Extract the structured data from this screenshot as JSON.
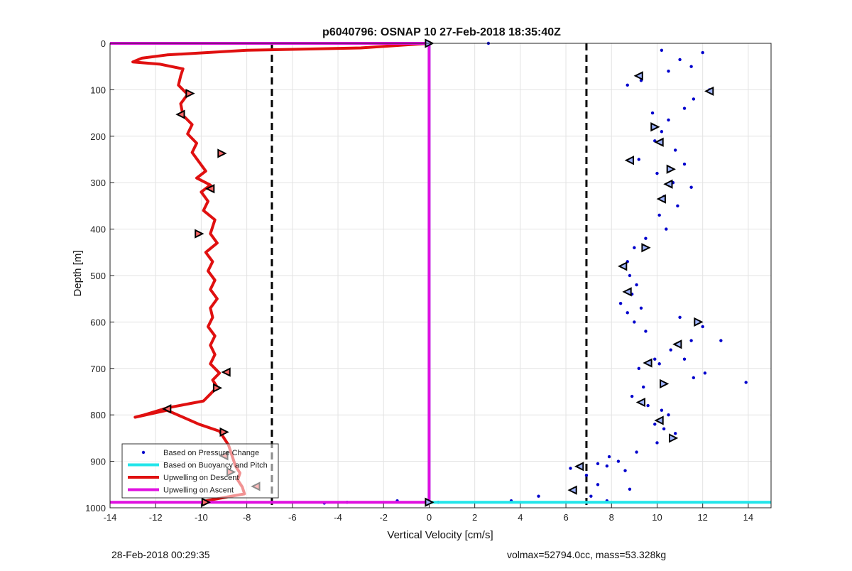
{
  "chart_data": {
    "type": "scatter",
    "title": "p6040796: OSNAP 10 27-Feb-2018 18:35:40Z",
    "xlabel": "Vertical Velocity [cm/s]",
    "ylabel": "Depth [m]",
    "xlim": [
      -14,
      15
    ],
    "ylim": [
      0,
      1000
    ],
    "y_reversed": true,
    "grid": true,
    "x_ticks": [
      -14,
      -12,
      -10,
      -8,
      -6,
      -4,
      -2,
      0,
      2,
      4,
      6,
      8,
      10,
      12,
      14
    ],
    "y_ticks": [
      0,
      100,
      200,
      300,
      400,
      500,
      600,
      700,
      800,
      900,
      1000
    ],
    "legend": {
      "placement": "bottom-left",
      "entries": [
        {
          "label": "Based on Pressure Change",
          "color": "#0000cc",
          "style": "dot"
        },
        {
          "label": "Based on Buoyancy and Pitch",
          "color": "#22e5ea",
          "style": "line"
        },
        {
          "label": "Upwelling on Descent",
          "color": "#e01010",
          "style": "line"
        },
        {
          "label": "Upwelling on Ascent",
          "color": "#e010e0",
          "style": "line"
        }
      ]
    },
    "reference_lines": {
      "color": "#000000",
      "style": "dashed",
      "x": [
        -6.9,
        6.9
      ]
    },
    "series": [
      {
        "name": "Upwelling on Descent",
        "color": "#e01010",
        "x": [
          0,
          -3,
          -8,
          -11.5,
          -12.6,
          -13,
          -11.8,
          -10.8,
          -10.9,
          -11.0,
          -10.6,
          -10.9,
          -10.8,
          -10.4,
          -10.6,
          -10.2,
          -10.4,
          -10.1,
          -9.8,
          -10.2,
          -9.6,
          -10.0,
          -9.7,
          -9.9,
          -9.4,
          -9.5,
          -9.6,
          -9.3,
          -9.8,
          -9.5,
          -9.7,
          -9.4,
          -9.6,
          -9.3,
          -9.6,
          -9.5,
          -9.7,
          -9.4,
          -9.6,
          -9.4,
          -9.6,
          -9.2,
          -9.5,
          -9.3,
          -9.6,
          -9.9,
          -11.5,
          -12.5,
          -12.9,
          -11.5,
          -10.1,
          -9.2,
          -9.0,
          -8.8,
          -8.7,
          -8.6,
          -8.5,
          -8.3,
          -8.4,
          -8.2,
          -8.1,
          -9.8
        ],
        "y": [
          0,
          10,
          15,
          25,
          32,
          40,
          45,
          55,
          70,
          90,
          110,
          130,
          155,
          175,
          195,
          215,
          235,
          255,
          275,
          290,
          305,
          320,
          340,
          360,
          380,
          395,
          410,
          430,
          450,
          470,
          490,
          510,
          530,
          550,
          570,
          590,
          610,
          630,
          650,
          670,
          690,
          710,
          725,
          740,
          755,
          770,
          785,
          800,
          805,
          790,
          820,
          835,
          850,
          865,
          880,
          895,
          910,
          925,
          940,
          955,
          970,
          985
        ]
      },
      {
        "name": "Based on Pressure Change",
        "color": "#0000cc",
        "x": [
          10.2,
          11.0,
          12.0,
          11.5,
          10.5,
          9.3,
          8.7,
          12.3,
          11.6,
          9.8,
          10.5,
          11.2,
          10.2,
          9.9,
          10.8,
          11.2,
          10.0,
          9.2,
          10.7,
          11.5,
          10.3,
          10.9,
          10.1,
          10.4,
          9.5,
          9.0,
          8.7,
          8.6,
          8.8,
          9.1,
          8.9,
          8.4,
          8.7,
          9.3,
          9.0,
          9.5,
          11.0,
          12.0,
          11.5,
          12.8,
          10.6,
          9.9,
          9.2,
          10.1,
          11.2,
          12.1,
          11.6,
          13.9,
          9.4,
          8.9,
          9.6,
          10.2,
          10.5,
          9.9,
          10.3,
          10.8,
          10.0,
          9.1,
          7.9,
          7.4,
          8.3,
          7.8,
          8.6,
          6.9,
          6.2,
          7.4,
          8.8,
          7.1,
          4.8,
          3.6,
          0.4,
          -1.4,
          -3.6,
          2.6,
          -4.6,
          7.8
        ],
        "y": [
          15,
          35,
          20,
          50,
          60,
          80,
          90,
          100,
          120,
          150,
          165,
          140,
          190,
          210,
          230,
          260,
          280,
          250,
          300,
          310,
          330,
          350,
          370,
          400,
          420,
          440,
          470,
          480,
          500,
          520,
          540,
          560,
          580,
          570,
          600,
          620,
          590,
          610,
          640,
          640,
          660,
          680,
          700,
          690,
          680,
          710,
          720,
          730,
          740,
          760,
          780,
          790,
          800,
          820,
          830,
          840,
          860,
          880,
          890,
          905,
          900,
          910,
          920,
          930,
          915,
          950,
          960,
          975,
          975,
          985,
          988,
          985,
          988,
          0,
          990,
          985
        ]
      },
      {
        "name": "Based on Buoyancy and Pitch",
        "color": "#22e5ea",
        "x": [
          0,
          0,
          0,
          15
        ],
        "y": [
          0,
          988,
          988,
          988
        ]
      },
      {
        "name": "Upwelling on Ascent",
        "color": "#e010e0",
        "x": [
          -14,
          0,
          0,
          -14
        ],
        "y": [
          0,
          0,
          988,
          988
        ]
      }
    ],
    "markers": {
      "descent_left": {
        "x": [
          -10.5,
          -10.9,
          -9.1,
          -9.6,
          -10.1,
          -8.9,
          -9.3,
          -11.5,
          -9.0,
          -9.0,
          -8.7,
          -7.6,
          -9.8
        ],
        "y": [
          108,
          153,
          237,
          313,
          410,
          708,
          742,
          787,
          837,
          888,
          923,
          954,
          988
        ]
      },
      "ascent_right": {
        "x": [
          0,
          9.2,
          12.3,
          9.9,
          10.1,
          8.8,
          10.6,
          10.5,
          10.2,
          9.5,
          8.5,
          8.7,
          11.8,
          10.9,
          9.6,
          10.3,
          9.3,
          10.1,
          10.7,
          6.6,
          6.3,
          0
        ],
        "y": [
          0,
          70,
          103,
          180,
          213,
          252,
          271,
          303,
          335,
          440,
          480,
          535,
          600,
          648,
          688,
          733,
          773,
          812,
          850,
          911,
          962,
          988
        ]
      }
    }
  },
  "footer": {
    "timestamp": "28-Feb-2018 00:29:35",
    "volmax_mass": "volmax=52794.0cc, mass=53.328kg"
  }
}
